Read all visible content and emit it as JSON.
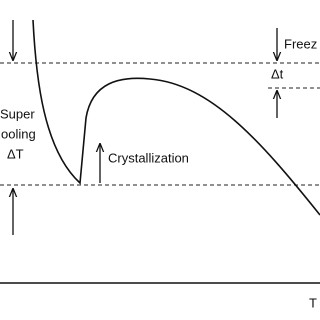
{
  "labels": {
    "supercooling": [
      "Super",
      "ooling",
      "ΔT"
    ],
    "crystallization": "Crystallization",
    "freezing": "Freez",
    "delta_t": "Δt",
    "x_axis": "T"
  }
}
